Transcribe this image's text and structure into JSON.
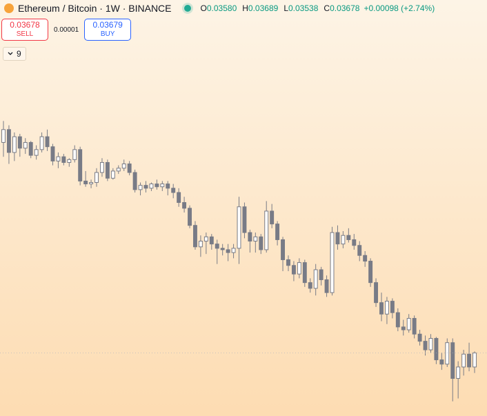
{
  "header": {
    "title": "Ethereum / Bitcoin · 1W · BINANCE",
    "ohlc": [
      {
        "key": "O",
        "value": {
          "value": 0.0358,
          "label": "0.03580"
        }
      },
      {
        "key": "H",
        "value": {
          "value": 0.03689,
          "label": "0.03689"
        }
      },
      {
        "key": "L",
        "value": {
          "value": 0.03538,
          "label": "0.03538"
        }
      },
      {
        "key": "C",
        "value": {
          "value": 0.03678,
          "label": "0.03678"
        }
      }
    ],
    "change": "+0.00098 (+2.74%)"
  },
  "trade": {
    "sell_price": "0.03678",
    "sell_label": "SELL",
    "spread": "0.00001",
    "buy_price": "0.03679",
    "buy_label": "BUY"
  },
  "indicators": {
    "count": 9
  },
  "chart_data": {
    "type": "candlestick",
    "up_color": "#ffffff",
    "down_color": "#787b86",
    "outline_color": "#787b86",
    "ylim": [
      0.033,
      0.0535
    ],
    "ohlc": [
      [
        0.0515,
        0.053,
        0.0505,
        0.0524
      ],
      [
        0.0524,
        0.0527,
        0.05,
        0.0508
      ],
      [
        0.0508,
        0.0522,
        0.0502,
        0.0519
      ],
      [
        0.0519,
        0.0521,
        0.0505,
        0.0511
      ],
      [
        0.0511,
        0.0518,
        0.0507,
        0.0515
      ],
      [
        0.0515,
        0.0516,
        0.0504,
        0.0506
      ],
      [
        0.0506,
        0.0513,
        0.0503,
        0.051
      ],
      [
        0.051,
        0.0522,
        0.0508,
        0.0519
      ],
      [
        0.0519,
        0.0524,
        0.0509,
        0.0512
      ],
      [
        0.0512,
        0.0514,
        0.0499,
        0.0502
      ],
      [
        0.0502,
        0.0508,
        0.0497,
        0.0505
      ],
      [
        0.0505,
        0.0507,
        0.0499,
        0.0501
      ],
      [
        0.0501,
        0.0504,
        0.0498,
        0.0503
      ],
      [
        0.0503,
        0.0513,
        0.0501,
        0.051
      ],
      [
        0.051,
        0.0512,
        0.0485,
        0.0488
      ],
      [
        0.0488,
        0.0495,
        0.0484,
        0.0486
      ],
      [
        0.0486,
        0.0489,
        0.0483,
        0.0487
      ],
      [
        0.0487,
        0.0497,
        0.0484,
        0.0494
      ],
      [
        0.0494,
        0.0504,
        0.0491,
        0.0501
      ],
      [
        0.0501,
        0.0503,
        0.0488,
        0.049
      ],
      [
        0.049,
        0.0497,
        0.0489,
        0.0495
      ],
      [
        0.0495,
        0.0499,
        0.0493,
        0.0497
      ],
      [
        0.0497,
        0.0503,
        0.0495,
        0.05
      ],
      [
        0.05,
        0.0502,
        0.0492,
        0.0494
      ],
      [
        0.0494,
        0.0496,
        0.048,
        0.0482
      ],
      [
        0.0482,
        0.0487,
        0.0478,
        0.0485
      ],
      [
        0.0485,
        0.0488,
        0.048,
        0.0483
      ],
      [
        0.0483,
        0.0487,
        0.0481,
        0.0486
      ],
      [
        0.0486,
        0.0489,
        0.0482,
        0.0484
      ],
      [
        0.0484,
        0.0488,
        0.0481,
        0.0486
      ],
      [
        0.0486,
        0.0488,
        0.0478,
        0.0483
      ],
      [
        0.0483,
        0.0486,
        0.0476,
        0.048
      ],
      [
        0.048,
        0.0483,
        0.047,
        0.0473
      ],
      [
        0.0473,
        0.0477,
        0.0466,
        0.0469
      ],
      [
        0.0469,
        0.0471,
        0.0455,
        0.0457
      ],
      [
        0.0457,
        0.046,
        0.044,
        0.0442
      ],
      [
        0.0442,
        0.045,
        0.0435,
        0.0446
      ],
      [
        0.0446,
        0.0452,
        0.0437,
        0.0449
      ],
      [
        0.0449,
        0.0451,
        0.044,
        0.0444
      ],
      [
        0.0444,
        0.0447,
        0.043,
        0.0441
      ],
      [
        0.0441,
        0.0444,
        0.0436,
        0.044
      ],
      [
        0.044,
        0.0444,
        0.0432,
        0.0438
      ],
      [
        0.0438,
        0.0444,
        0.0434,
        0.0441
      ],
      [
        0.0441,
        0.0477,
        0.043,
        0.047
      ],
      [
        0.047,
        0.0473,
        0.0448,
        0.0452
      ],
      [
        0.0452,
        0.0454,
        0.0438,
        0.0446
      ],
      [
        0.0446,
        0.0452,
        0.0438,
        0.0449
      ],
      [
        0.0449,
        0.0451,
        0.0437,
        0.044
      ],
      [
        0.044,
        0.0474,
        0.0438,
        0.0467
      ],
      [
        0.0467,
        0.0472,
        0.0455,
        0.0458
      ],
      [
        0.0458,
        0.046,
        0.0443,
        0.0447
      ],
      [
        0.0447,
        0.0449,
        0.0425,
        0.0433
      ],
      [
        0.0433,
        0.0436,
        0.0425,
        0.0429
      ],
      [
        0.0429,
        0.0432,
        0.0418,
        0.0423
      ],
      [
        0.0423,
        0.0434,
        0.042,
        0.0431
      ],
      [
        0.0431,
        0.0433,
        0.0414,
        0.0417
      ],
      [
        0.0417,
        0.042,
        0.041,
        0.0413
      ],
      [
        0.0413,
        0.043,
        0.0408,
        0.0426
      ],
      [
        0.0426,
        0.0428,
        0.0415,
        0.0419
      ],
      [
        0.0419,
        0.0422,
        0.0407,
        0.041
      ],
      [
        0.041,
        0.0456,
        0.0408,
        0.0452
      ],
      [
        0.0452,
        0.0457,
        0.044,
        0.0444
      ],
      [
        0.0444,
        0.0453,
        0.0441,
        0.045
      ],
      [
        0.045,
        0.0455,
        0.0445,
        0.0447
      ],
      [
        0.0447,
        0.0451,
        0.044,
        0.0443
      ],
      [
        0.0443,
        0.0446,
        0.0432,
        0.0436
      ],
      [
        0.0436,
        0.0439,
        0.0428,
        0.0432
      ],
      [
        0.0432,
        0.0434,
        0.0414,
        0.0417
      ],
      [
        0.0417,
        0.042,
        0.04,
        0.0403
      ],
      [
        0.0403,
        0.041,
        0.039,
        0.0395
      ],
      [
        0.0395,
        0.0407,
        0.0388,
        0.0404
      ],
      [
        0.0404,
        0.0406,
        0.0392,
        0.0396
      ],
      [
        0.0396,
        0.0399,
        0.0383,
        0.0386
      ],
      [
        0.0386,
        0.0391,
        0.038,
        0.0384
      ],
      [
        0.0384,
        0.0395,
        0.0382,
        0.0392
      ],
      [
        0.0392,
        0.0394,
        0.0378,
        0.0381
      ],
      [
        0.0381,
        0.0384,
        0.0373,
        0.0376
      ],
      [
        0.0376,
        0.038,
        0.0366,
        0.037
      ],
      [
        0.037,
        0.0381,
        0.0368,
        0.0378
      ],
      [
        0.0378,
        0.0379,
        0.036,
        0.0363
      ],
      [
        0.0363,
        0.0368,
        0.0356,
        0.036
      ],
      [
        0.036,
        0.0378,
        0.0358,
        0.0375
      ],
      [
        0.0375,
        0.0378,
        0.0334,
        0.035
      ],
      [
        0.035,
        0.0362,
        0.0336,
        0.0358
      ],
      [
        0.0358,
        0.037,
        0.0352,
        0.0367
      ],
      [
        0.0367,
        0.0375,
        0.0355,
        0.0358
      ],
      [
        0.0358,
        0.03689,
        0.03538,
        0.03678
      ]
    ]
  }
}
